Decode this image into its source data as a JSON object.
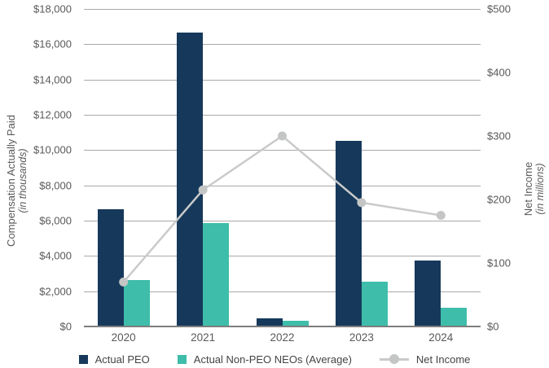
{
  "chart_data": {
    "type": "combo-bar-line",
    "categories": [
      "2020",
      "2021",
      "2022",
      "2023",
      "2024"
    ],
    "series": [
      {
        "name": "Actual PEO",
        "type": "bar",
        "axis": "left",
        "color": "#16395b",
        "values": [
          6600,
          16600,
          400,
          10500,
          3700
        ]
      },
      {
        "name": "Actual Non-PEO NEOs (Average)",
        "type": "bar",
        "axis": "left",
        "color": "#3dbdaa",
        "values": [
          2600,
          5800,
          300,
          2500,
          1000
        ]
      },
      {
        "name": "Net Income",
        "type": "line",
        "axis": "right",
        "color": "#c9cbca",
        "marker_color": "#c3c6c5",
        "values": [
          70,
          215,
          300,
          195,
          175
        ]
      }
    ],
    "left_axis": {
      "title_line1": "Compensation Actually Paid",
      "title_line2": "(in thousands)",
      "min": 0,
      "max": 18000,
      "step": 2000,
      "ticks": [
        "$0",
        "$2,000",
        "$4,000",
        "$6,000",
        "$8,000",
        "$10,000",
        "$12,000",
        "$14,000",
        "$16,000",
        "$18,000"
      ]
    },
    "right_axis": {
      "title_line1": "Net Income",
      "title_line2": "(in millions)",
      "min": 0,
      "max": 500,
      "step": 100,
      "ticks": [
        "$0",
        "$100",
        "$200",
        "$300",
        "$400",
        "$500"
      ]
    },
    "grid": true,
    "legend_position": "bottom",
    "colors": {
      "gridline": "#a9a9a9",
      "axis_line": "#7e7e7e",
      "tick_text": "#595959",
      "legend_text": "#444444"
    }
  }
}
